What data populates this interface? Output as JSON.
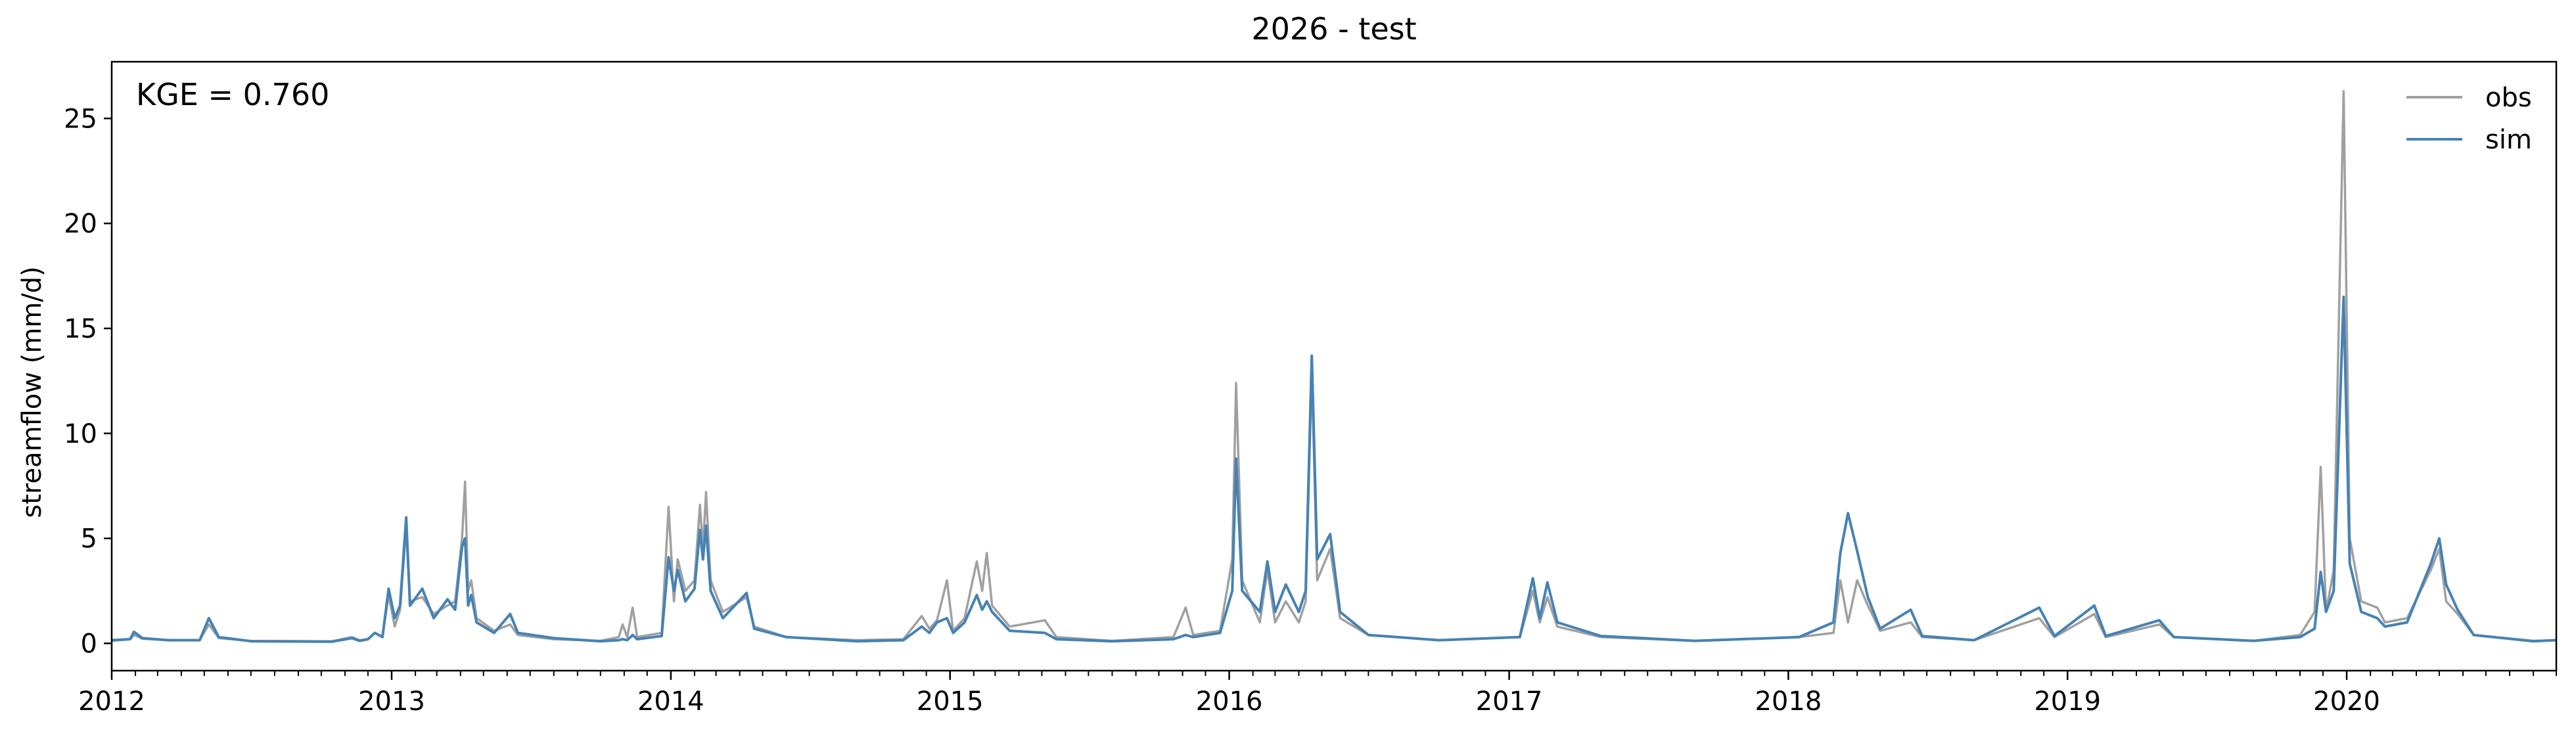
{
  "chart_data": {
    "type": "line",
    "title": "2026 - test",
    "xlabel": "",
    "ylabel": "streamflow (mm/d)",
    "annotation": "KGE = 0.760",
    "x_ticks": [
      "2012",
      "2013",
      "2014",
      "2015",
      "2016",
      "2017",
      "2018",
      "2019",
      "2020"
    ],
    "y_ticks": [
      0,
      5,
      10,
      15,
      20,
      25
    ],
    "xlim": [
      "2012-01-01",
      "2020-10-01"
    ],
    "ylim": [
      -1.3,
      27.7
    ],
    "grid": false,
    "legend_position": "top-right",
    "series": [
      {
        "name": "obs",
        "color": "#a0a0a0",
        "points": [
          [
            "2012-01-01",
            0.12
          ],
          [
            "2012-01-25",
            0.2
          ],
          [
            "2012-01-30",
            0.4
          ],
          [
            "2012-02-10",
            0.22
          ],
          [
            "2012-03-15",
            0.15
          ],
          [
            "2012-04-25",
            0.15
          ],
          [
            "2012-05-07",
            0.9
          ],
          [
            "2012-05-20",
            0.25
          ],
          [
            "2012-07-01",
            0.12
          ],
          [
            "2012-10-15",
            0.1
          ],
          [
            "2012-11-10",
            0.3
          ],
          [
            "2012-11-20",
            0.15
          ],
          [
            "2012-12-01",
            0.2
          ],
          [
            "2012-12-10",
            0.5
          ],
          [
            "2012-12-20",
            0.3
          ],
          [
            "2012-12-28",
            2.3
          ],
          [
            "2013-01-05",
            0.8
          ],
          [
            "2013-01-12",
            1.6
          ],
          [
            "2013-01-20",
            5.5
          ],
          [
            "2013-01-25",
            2.0
          ],
          [
            "2013-02-10",
            2.2
          ],
          [
            "2013-02-25",
            1.4
          ],
          [
            "2013-03-15",
            1.8
          ],
          [
            "2013-03-25",
            2.0
          ],
          [
            "2013-04-03",
            5.0
          ],
          [
            "2013-04-07",
            7.7
          ],
          [
            "2013-04-11",
            2.5
          ],
          [
            "2013-04-15",
            3.0
          ],
          [
            "2013-04-22",
            1.2
          ],
          [
            "2013-05-15",
            0.6
          ],
          [
            "2013-06-05",
            0.9
          ],
          [
            "2013-06-15",
            0.4
          ],
          [
            "2013-08-01",
            0.2
          ],
          [
            "2013-10-01",
            0.12
          ],
          [
            "2013-10-25",
            0.3
          ],
          [
            "2013-10-30",
            0.9
          ],
          [
            "2013-11-05",
            0.3
          ],
          [
            "2013-11-12",
            1.7
          ],
          [
            "2013-11-18",
            0.3
          ],
          [
            "2013-12-20",
            0.5
          ],
          [
            "2013-12-29",
            6.5
          ],
          [
            "2014-01-05",
            2.0
          ],
          [
            "2014-01-10",
            4.0
          ],
          [
            "2014-01-20",
            2.5
          ],
          [
            "2014-02-01",
            3.0
          ],
          [
            "2014-02-08",
            6.6
          ],
          [
            "2014-02-12",
            4.5
          ],
          [
            "2014-02-16",
            7.2
          ],
          [
            "2014-02-22",
            3.0
          ],
          [
            "2014-03-10",
            1.5
          ],
          [
            "2014-04-10",
            2.2
          ],
          [
            "2014-04-20",
            0.8
          ],
          [
            "2014-06-01",
            0.3
          ],
          [
            "2014-09-01",
            0.15
          ],
          [
            "2014-11-01",
            0.2
          ],
          [
            "2014-11-25",
            1.3
          ],
          [
            "2014-12-05",
            0.7
          ],
          [
            "2014-12-15",
            1.1
          ],
          [
            "2014-12-28",
            3.0
          ],
          [
            "2015-01-05",
            0.6
          ],
          [
            "2015-01-20",
            1.2
          ],
          [
            "2015-02-05",
            3.9
          ],
          [
            "2015-02-12",
            2.5
          ],
          [
            "2015-02-18",
            4.3
          ],
          [
            "2015-02-25",
            1.8
          ],
          [
            "2015-03-20",
            0.8
          ],
          [
            "2015-05-05",
            1.1
          ],
          [
            "2015-05-20",
            0.3
          ],
          [
            "2015-08-01",
            0.12
          ],
          [
            "2015-10-20",
            0.3
          ],
          [
            "2015-11-05",
            1.7
          ],
          [
            "2015-11-15",
            0.4
          ],
          [
            "2015-12-20",
            0.6
          ],
          [
            "2016-01-05",
            4.0
          ],
          [
            "2016-01-10",
            12.4
          ],
          [
            "2016-01-18",
            3.0
          ],
          [
            "2016-02-10",
            1.0
          ],
          [
            "2016-02-20",
            3.5
          ],
          [
            "2016-03-01",
            1.0
          ],
          [
            "2016-03-15",
            2.0
          ],
          [
            "2016-04-01",
            1.0
          ],
          [
            "2016-04-10",
            2.0
          ],
          [
            "2016-04-18",
            13.0
          ],
          [
            "2016-04-25",
            3.0
          ],
          [
            "2016-05-12",
            4.5
          ],
          [
            "2016-05-25",
            1.2
          ],
          [
            "2016-07-01",
            0.4
          ],
          [
            "2016-10-01",
            0.15
          ],
          [
            "2017-01-15",
            0.3
          ],
          [
            "2017-02-01",
            2.5
          ],
          [
            "2017-02-10",
            1.0
          ],
          [
            "2017-02-20",
            2.2
          ],
          [
            "2017-03-05",
            0.8
          ],
          [
            "2017-05-01",
            0.3
          ],
          [
            "2017-09-01",
            0.12
          ],
          [
            "2018-01-15",
            0.3
          ],
          [
            "2018-03-01",
            0.5
          ],
          [
            "2018-03-10",
            3.0
          ],
          [
            "2018-03-20",
            1.0
          ],
          [
            "2018-04-01",
            3.0
          ],
          [
            "2018-04-15",
            1.8
          ],
          [
            "2018-05-01",
            0.6
          ],
          [
            "2018-06-10",
            1.0
          ],
          [
            "2018-06-25",
            0.3
          ],
          [
            "2018-09-01",
            0.15
          ],
          [
            "2018-11-25",
            1.2
          ],
          [
            "2018-12-15",
            0.3
          ],
          [
            "2019-02-05",
            1.4
          ],
          [
            "2019-02-20",
            0.3
          ],
          [
            "2019-05-01",
            0.9
          ],
          [
            "2019-05-20",
            0.3
          ],
          [
            "2019-09-01",
            0.12
          ],
          [
            "2019-11-01",
            0.4
          ],
          [
            "2019-11-20",
            1.5
          ],
          [
            "2019-11-28",
            8.4
          ],
          [
            "2019-12-05",
            1.5
          ],
          [
            "2019-12-15",
            3.5
          ],
          [
            "2019-12-28",
            26.3
          ],
          [
            "2020-01-05",
            5.0
          ],
          [
            "2020-01-20",
            2.0
          ],
          [
            "2020-02-10",
            1.7
          ],
          [
            "2020-02-20",
            1.0
          ],
          [
            "2020-03-20",
            1.2
          ],
          [
            "2020-04-20",
            3.5
          ],
          [
            "2020-05-01",
            4.5
          ],
          [
            "2020-05-10",
            2.0
          ],
          [
            "2020-05-25",
            1.4
          ],
          [
            "2020-06-15",
            0.4
          ],
          [
            "2020-09-01",
            0.12
          ],
          [
            "2020-10-01",
            0.15
          ]
        ]
      },
      {
        "name": "sim",
        "color": "#4682b4",
        "points": [
          [
            "2012-01-01",
            0.15
          ],
          [
            "2012-01-25",
            0.2
          ],
          [
            "2012-01-30",
            0.55
          ],
          [
            "2012-02-10",
            0.25
          ],
          [
            "2012-03-15",
            0.15
          ],
          [
            "2012-04-25",
            0.15
          ],
          [
            "2012-05-07",
            1.2
          ],
          [
            "2012-05-20",
            0.3
          ],
          [
            "2012-07-01",
            0.1
          ],
          [
            "2012-10-15",
            0.08
          ],
          [
            "2012-11-10",
            0.25
          ],
          [
            "2012-11-20",
            0.12
          ],
          [
            "2012-12-01",
            0.2
          ],
          [
            "2012-12-10",
            0.5
          ],
          [
            "2012-12-20",
            0.3
          ],
          [
            "2012-12-28",
            2.6
          ],
          [
            "2013-01-05",
            1.2
          ],
          [
            "2013-01-12",
            1.8
          ],
          [
            "2013-01-20",
            6.0
          ],
          [
            "2013-01-25",
            1.8
          ],
          [
            "2013-02-10",
            2.6
          ],
          [
            "2013-02-25",
            1.2
          ],
          [
            "2013-03-15",
            2.1
          ],
          [
            "2013-03-25",
            1.6
          ],
          [
            "2013-04-03",
            4.6
          ],
          [
            "2013-04-07",
            5.0
          ],
          [
            "2013-04-11",
            1.8
          ],
          [
            "2013-04-15",
            2.3
          ],
          [
            "2013-04-22",
            1.0
          ],
          [
            "2013-05-15",
            0.5
          ],
          [
            "2013-06-05",
            1.4
          ],
          [
            "2013-06-15",
            0.5
          ],
          [
            "2013-08-01",
            0.25
          ],
          [
            "2013-10-01",
            0.1
          ],
          [
            "2013-10-25",
            0.15
          ],
          [
            "2013-10-30",
            0.2
          ],
          [
            "2013-11-05",
            0.15
          ],
          [
            "2013-11-12",
            0.4
          ],
          [
            "2013-11-18",
            0.2
          ],
          [
            "2013-12-20",
            0.35
          ],
          [
            "2013-12-29",
            4.1
          ],
          [
            "2014-01-05",
            2.5
          ],
          [
            "2014-01-10",
            3.5
          ],
          [
            "2014-01-20",
            2.0
          ],
          [
            "2014-02-01",
            2.6
          ],
          [
            "2014-02-08",
            5.4
          ],
          [
            "2014-02-12",
            4.0
          ],
          [
            "2014-02-16",
            5.6
          ],
          [
            "2014-02-22",
            2.5
          ],
          [
            "2014-03-10",
            1.2
          ],
          [
            "2014-04-10",
            2.4
          ],
          [
            "2014-04-20",
            0.7
          ],
          [
            "2014-06-01",
            0.3
          ],
          [
            "2014-09-01",
            0.1
          ],
          [
            "2014-11-01",
            0.15
          ],
          [
            "2014-11-25",
            0.8
          ],
          [
            "2014-12-05",
            0.5
          ],
          [
            "2014-12-15",
            1.0
          ],
          [
            "2014-12-28",
            1.2
          ],
          [
            "2015-01-05",
            0.5
          ],
          [
            "2015-01-20",
            1.0
          ],
          [
            "2015-02-05",
            2.3
          ],
          [
            "2015-02-12",
            1.6
          ],
          [
            "2015-02-18",
            2.0
          ],
          [
            "2015-02-25",
            1.5
          ],
          [
            "2015-03-20",
            0.6
          ],
          [
            "2015-05-05",
            0.5
          ],
          [
            "2015-05-20",
            0.2
          ],
          [
            "2015-08-01",
            0.1
          ],
          [
            "2015-10-20",
            0.2
          ],
          [
            "2015-11-05",
            0.4
          ],
          [
            "2015-11-15",
            0.3
          ],
          [
            "2015-12-20",
            0.5
          ],
          [
            "2016-01-05",
            2.5
          ],
          [
            "2016-01-10",
            8.8
          ],
          [
            "2016-01-18",
            2.5
          ],
          [
            "2016-02-10",
            1.5
          ],
          [
            "2016-02-20",
            3.9
          ],
          [
            "2016-03-01",
            1.5
          ],
          [
            "2016-03-15",
            2.8
          ],
          [
            "2016-04-01",
            1.5
          ],
          [
            "2016-04-10",
            2.5
          ],
          [
            "2016-04-18",
            13.7
          ],
          [
            "2016-04-25",
            4.0
          ],
          [
            "2016-05-12",
            5.2
          ],
          [
            "2016-05-25",
            1.5
          ],
          [
            "2016-07-01",
            0.4
          ],
          [
            "2016-10-01",
            0.15
          ],
          [
            "2017-01-15",
            0.3
          ],
          [
            "2017-02-01",
            3.1
          ],
          [
            "2017-02-10",
            1.2
          ],
          [
            "2017-02-20",
            2.9
          ],
          [
            "2017-03-05",
            1.0
          ],
          [
            "2017-05-01",
            0.35
          ],
          [
            "2017-09-01",
            0.12
          ],
          [
            "2018-01-15",
            0.3
          ],
          [
            "2018-03-01",
            1.0
          ],
          [
            "2018-03-10",
            4.3
          ],
          [
            "2018-03-20",
            6.2
          ],
          [
            "2018-04-01",
            4.4
          ],
          [
            "2018-04-15",
            2.2
          ],
          [
            "2018-05-01",
            0.7
          ],
          [
            "2018-06-10",
            1.6
          ],
          [
            "2018-06-25",
            0.35
          ],
          [
            "2018-09-01",
            0.15
          ],
          [
            "2018-11-25",
            1.7
          ],
          [
            "2018-12-15",
            0.35
          ],
          [
            "2019-02-05",
            1.8
          ],
          [
            "2019-02-20",
            0.35
          ],
          [
            "2019-05-01",
            1.1
          ],
          [
            "2019-05-20",
            0.3
          ],
          [
            "2019-09-01",
            0.12
          ],
          [
            "2019-11-01",
            0.3
          ],
          [
            "2019-11-20",
            0.7
          ],
          [
            "2019-11-28",
            3.4
          ],
          [
            "2019-12-05",
            1.5
          ],
          [
            "2019-12-15",
            2.5
          ],
          [
            "2019-12-28",
            16.5
          ],
          [
            "2020-01-05",
            3.8
          ],
          [
            "2020-01-20",
            1.5
          ],
          [
            "2020-02-10",
            1.2
          ],
          [
            "2020-02-20",
            0.8
          ],
          [
            "2020-03-20",
            1.0
          ],
          [
            "2020-04-20",
            3.8
          ],
          [
            "2020-05-01",
            5.0
          ],
          [
            "2020-05-10",
            2.8
          ],
          [
            "2020-05-25",
            1.6
          ],
          [
            "2020-06-15",
            0.4
          ],
          [
            "2020-09-01",
            0.1
          ],
          [
            "2020-10-01",
            0.15
          ]
        ]
      }
    ]
  }
}
